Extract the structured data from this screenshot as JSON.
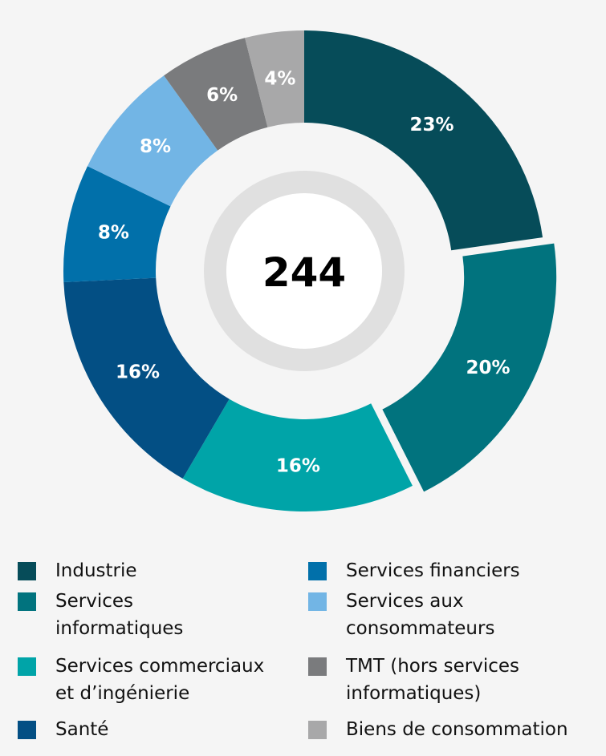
{
  "chart_data": {
    "type": "pie",
    "variant": "donut",
    "center_total": "244",
    "exploded_slice": "Services informatiques",
    "slices": [
      {
        "name": "Industrie",
        "value": 23,
        "label": "23%",
        "color": "#064c59"
      },
      {
        "name": "Services informatiques",
        "value": 20,
        "label": "20%",
        "color": "#01737e"
      },
      {
        "name": "Services commerciaux et d’ingénierie",
        "value": 16,
        "label": "16%",
        "color": "#00a4a8"
      },
      {
        "name": "Santé",
        "value": 16,
        "label": "16%",
        "color": "#034f84"
      },
      {
        "name": "Services financiers",
        "value": 8,
        "label": "8%",
        "color": "#0170aa"
      },
      {
        "name": "Services aux consommateurs",
        "value": 8,
        "label": "8%",
        "color": "#72b5e5"
      },
      {
        "name": "TMT (hors services informatiques)",
        "value": 6,
        "label": "6%",
        "color": "#7a7b7d"
      },
      {
        "name": "Biens de consommation",
        "value": 4,
        "label": "4%",
        "color": "#a8a8a9"
      }
    ],
    "legend": {
      "placement": "bottom",
      "left_column": [
        {
          "text": "Industrie",
          "color": "#064c59"
        },
        {
          "text": "Services\ninformatiques",
          "color": "#01737e"
        },
        {
          "text": "Services commerciaux\net d’ingénierie",
          "color": "#00a4a8"
        },
        {
          "text": "Santé",
          "color": "#034f84"
        }
      ],
      "right_column": [
        {
          "text": "Services financiers",
          "color": "#0170aa"
        },
        {
          "text": "Services aux\nconsommateurs",
          "color": "#72b5e5"
        },
        {
          "text": "TMT (hors services\ninformatiques)",
          "color": "#7a7b7d"
        },
        {
          "text": "Biens de consommation",
          "color": "#a8a8a9"
        }
      ]
    }
  }
}
